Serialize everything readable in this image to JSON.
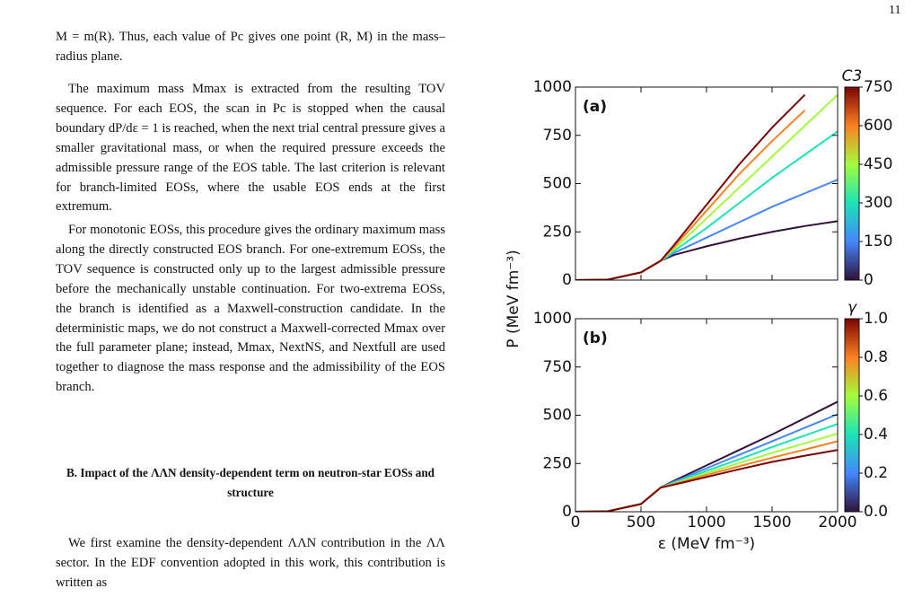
{
  "page_number": "11",
  "body": {
    "paragraphs": [
      "M = m(R). Thus, each value of Pc gives one point (R, M) in the mass–radius plane.",
      "The maximum mass Mmax is extracted from the resulting TOV sequence. For each EOS, the scan in Pc is stopped when the causal boundary dP/dε = 1 is reached, when the next trial central pressure gives a smaller gravitational mass, or when the required pressure exceeds the admissible pressure range of the EOS table. The last criterion is relevant for branch-limited EOSs, where the usable EOS ends at the first extremum.",
      "For monotonic EOSs, this procedure gives the ordinary maximum mass along the directly constructed EOS branch. For one-extremum EOSs, the TOV sequence is constructed only up to the largest admissible pressure before the mechanically unstable continuation. For two-extrema EOSs, the branch is identified as a Maxwell-construction candidate. In the deterministic maps, we do not construct a Maxwell-corrected Mmax over the full parameter plane; instead, Mmax, NextNS, and Nextfull are used together to diagnose the mass response and the admissibility of the EOS branch."
    ],
    "section_heading": "B.   Impact of the ΛΛN density-dependent term on neutron-star EOSs and structure",
    "paragraphs_after": [
      "We first examine the density-dependent ΛΛN contribution in the ΛΛ sector. In the EDF convention adopted in this work, this contribution is written as"
    ]
  },
  "figure": {
    "chart_data": [
      {
        "type": "line",
        "panel_label": "(a)",
        "ylabel": "P (MeV fm⁻³)",
        "x": [
          0,
          250,
          500,
          650,
          750,
          1000,
          1250,
          1500,
          1750,
          2000
        ],
        "xlim": [
          0,
          2000
        ],
        "ylim": [
          0,
          1000
        ],
        "yticks": [
          0,
          250,
          500,
          750,
          1000
        ],
        "colorbar_label": "C3",
        "clim": [
          0,
          750
        ],
        "cticks": [
          0,
          150,
          300,
          450,
          600,
          750
        ],
        "series": [
          {
            "color": "#30123b",
            "values": [
              0,
              3,
              40,
              100,
              130,
              175,
              215,
              250,
              280,
              305
            ]
          },
          {
            "color": "#4686fb",
            "values": [
              0,
              3,
              40,
              100,
              140,
              220,
              300,
              380,
              450,
              520
            ]
          },
          {
            "color": "#1ae4b6",
            "values": [
              0,
              3,
              40,
              100,
              150,
              270,
              400,
              530,
              650,
              770
            ]
          },
          {
            "color": "#a2fc3c",
            "values": [
              0,
              3,
              40,
              100,
              160,
              320,
              480,
              640,
              800,
              960
            ]
          },
          {
            "color": "#fb8022",
            "values": [
              0,
              3,
              40,
              100,
              170,
              360,
              550,
              720,
              880,
              null
            ]
          },
          {
            "color": "#7a0403",
            "values": [
              0,
              3,
              40,
              100,
              180,
              390,
              600,
              790,
              960,
              null
            ]
          }
        ]
      },
      {
        "type": "line",
        "panel_label": "(b)",
        "xlabel": "ε (MeV fm⁻³)",
        "x": [
          0,
          250,
          500,
          650,
          750,
          1000,
          1250,
          1500,
          1750,
          2000
        ],
        "xlim": [
          0,
          2000
        ],
        "xticks": [
          0,
          500,
          1000,
          1500,
          2000
        ],
        "ylim": [
          0,
          1000
        ],
        "yticks": [
          0,
          250,
          500,
          750,
          1000
        ],
        "colorbar_label": "γ",
        "clim": [
          0,
          1
        ],
        "cticks": [
          {
            "value": 0,
            "label": "0.0"
          },
          0.2,
          0.4,
          0.6,
          0.8,
          {
            "value": 1,
            "label": "1.0"
          }
        ],
        "series": [
          {
            "color": "#30123b",
            "values": [
              0,
              3,
              40,
              125,
              160,
              240,
              320,
              400,
              485,
              570
            ]
          },
          {
            "color": "#4686fb",
            "values": [
              0,
              3,
              40,
              125,
              155,
              225,
              295,
              365,
              435,
              505
            ]
          },
          {
            "color": "#1ae4b6",
            "values": [
              0,
              3,
              40,
              125,
              150,
              212,
              272,
              335,
              395,
              455
            ]
          },
          {
            "color": "#a2fc3c",
            "values": [
              0,
              3,
              40,
              125,
              146,
              200,
              252,
              305,
              355,
              405
            ]
          },
          {
            "color": "#fb8022",
            "values": [
              0,
              3,
              40,
              125,
              143,
              190,
              236,
              280,
              322,
              365
            ]
          },
          {
            "color": "#7a0403",
            "values": [
              0,
              3,
              40,
              125,
              140,
              180,
              220,
              258,
              290,
              320
            ]
          }
        ]
      }
    ]
  }
}
